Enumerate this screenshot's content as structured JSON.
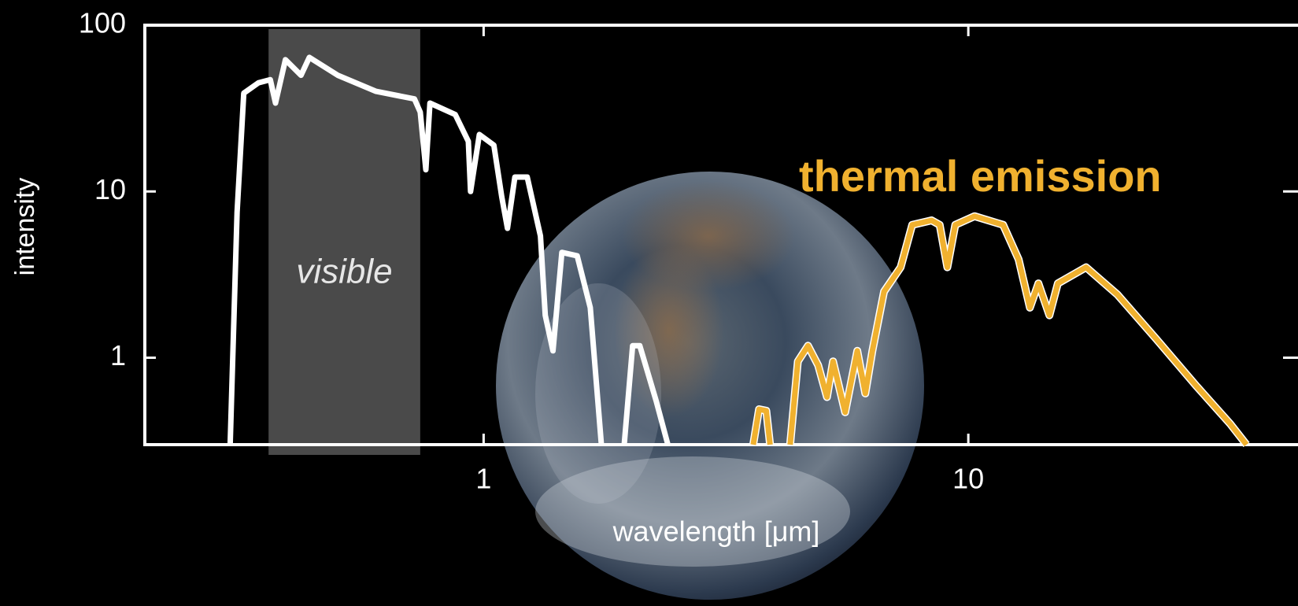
{
  "chart_data": {
    "type": "line",
    "x_label": "wavelength [μm]",
    "y_label": "intensity",
    "xscale": "log",
    "yscale": "log",
    "xlim": [
      0.2,
      47
    ],
    "ylim": [
      0.3,
      100
    ],
    "xticks": [
      1,
      10
    ],
    "yticks": [
      1,
      10,
      100
    ],
    "visible_band": {
      "label": "visible",
      "range": [
        0.36,
        0.74
      ],
      "color": "#4a4a4a"
    },
    "series": [
      {
        "color": "#ffffff",
        "x": [
          0.3,
          0.31,
          0.32,
          0.343,
          0.363,
          0.372,
          0.39,
          0.42,
          0.437,
          0.5,
          0.6,
          0.72,
          0.74,
          0.76,
          0.775,
          0.874,
          0.93,
          0.94,
          0.98,
          1.05,
          1.09,
          1.12,
          1.16,
          1.23,
          1.31,
          1.34,
          1.39,
          1.45,
          1.56,
          1.66,
          1.75,
          null,
          1.95,
          2.03,
          2.1,
          2.27,
          2.4
        ],
        "values": [
          0.3,
          7.5,
          39,
          45,
          47,
          34,
          62,
          50,
          64,
          50,
          40,
          36,
          30,
          13.5,
          34,
          29,
          20,
          10,
          22,
          19,
          9.3,
          6,
          12.2,
          12.2,
          5.4,
          1.8,
          1.1,
          4.3,
          4.1,
          2,
          0.3,
          null,
          0.3,
          1.18,
          1.18,
          0.55,
          0.3
        ]
      },
      {
        "name": "thermal emission",
        "color": "#f0b12f",
        "x": [
          3.6,
          3.7,
          3.83,
          3.9,
          null,
          4.29,
          4.45,
          4.67,
          4.9,
          5.11,
          5.26,
          5.57,
          5.9,
          6.13,
          6.34,
          6.7,
          7.25,
          7.66,
          8.4,
          8.73,
          9.05,
          9.4,
          10.3,
          11.8,
          12.7,
          13.4,
          13.95,
          14.7,
          15.3,
          17.5,
          20.3,
          24.4,
          29.5,
          34.7,
          37.5
        ],
        "values": [
          0.3,
          0.49,
          0.48,
          0.3,
          null,
          0.3,
          0.95,
          1.18,
          0.9,
          0.58,
          0.95,
          0.47,
          1.1,
          0.61,
          1.1,
          2.5,
          3.5,
          6.3,
          6.7,
          6.3,
          3.5,
          6.3,
          7.1,
          6.3,
          3.9,
          2,
          2.8,
          1.8,
          2.8,
          3.5,
          2.4,
          1.3,
          0.68,
          0.4,
          0.3
        ]
      }
    ]
  }
}
